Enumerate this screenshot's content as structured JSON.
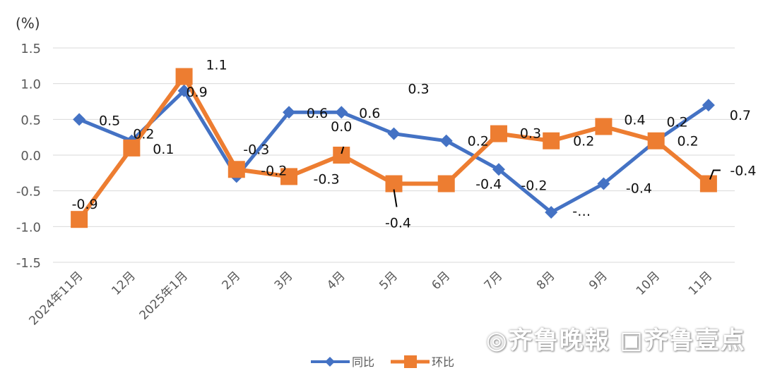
{
  "chart_data": {
    "type": "line",
    "title": "",
    "unit_label": "(%)",
    "categories": [
      "2024年11月",
      "12月",
      "2025年1月",
      "2月",
      "3月",
      "4月",
      "5月",
      "6月",
      "7月",
      "8月",
      "9月",
      "10月",
      "11月"
    ],
    "series": [
      {
        "name": "同比",
        "color": "#4472C4",
        "values": [
          0.5,
          0.2,
          0.9,
          -0.3,
          0.6,
          0.6,
          0.3,
          0.2,
          -0.2,
          -0.8,
          -0.4,
          0.2,
          0.7
        ],
        "labels": [
          "0.5",
          "0.2",
          "0.9",
          "-0.3",
          "0.6",
          "0.6",
          "0.3",
          "0.2",
          "-0.2",
          "-…",
          "-0.4",
          "0.2",
          "0.7"
        ]
      },
      {
        "name": "环比",
        "color": "#ED7D31",
        "values": [
          -0.9,
          0.1,
          1.1,
          -0.2,
          -0.3,
          0.0,
          -0.4,
          -0.4,
          0.3,
          0.2,
          0.4,
          0.2,
          -0.4
        ],
        "labels": [
          "-0.9",
          "0.1",
          "1.1",
          "-0.2",
          "-0.3",
          "0.0",
          "-0.4",
          "-0.4",
          "0.3",
          "0.2",
          "0.4",
          "0.2",
          "-0.4"
        ]
      }
    ],
    "ylim": [
      -1.5,
      1.5
    ],
    "yticks": [
      "1.5",
      "1.0",
      "0.5",
      "0.0",
      "-0.5",
      "-1.0",
      "-1.5"
    ],
    "ytick_values": [
      1.5,
      1.0,
      0.5,
      0.0,
      -0.5,
      -1.0,
      -1.5
    ],
    "grid": true,
    "legend": "bottom"
  },
  "watermark": "齐鲁晚报 壹点 齐鲁壹点"
}
